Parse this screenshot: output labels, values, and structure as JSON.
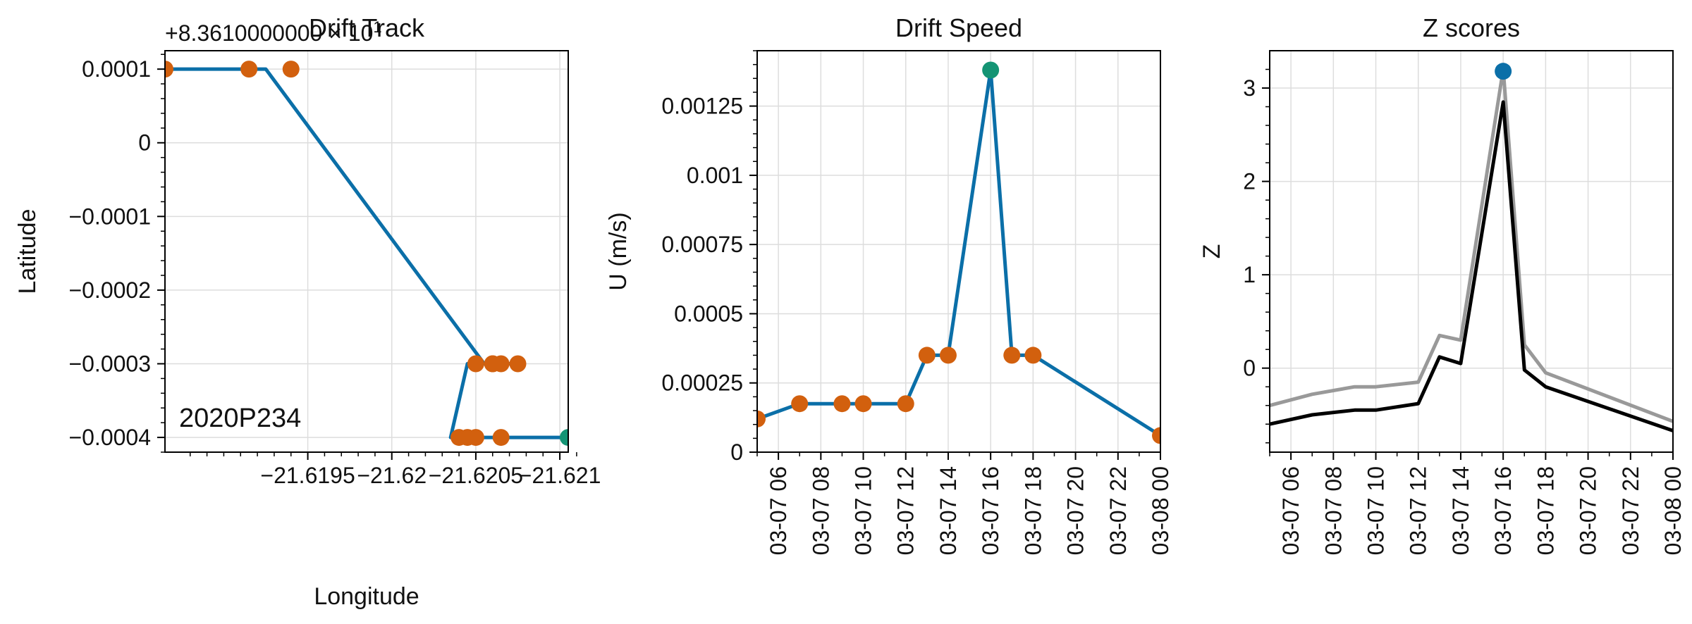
{
  "colors": {
    "line": "#0b6fa8",
    "marker_orange": "#d2600e",
    "marker_green": "#149474",
    "marker_blue": "#0b6fa8",
    "z_black": "#000000",
    "z_gray": "#999999",
    "grid": "#dddddd"
  },
  "chart_data": [
    {
      "type": "line",
      "title": "Drift Track",
      "xlabel": "Longitude",
      "ylabel": "Latitude",
      "offset_label": "+8.3610000000 × 10",
      "offset_exponent": "1",
      "annotation": "2020P234",
      "xlim": [
        -21.61865,
        -21.62105
      ],
      "ylim": [
        -0.00042,
        0.000125
      ],
      "x_ticks": [
        {
          "value": -21.6195,
          "label": "−21.6195"
        },
        {
          "value": -21.62,
          "label": "−21.62"
        },
        {
          "value": -21.6205,
          "label": "−21.6205"
        },
        {
          "value": -21.621,
          "label": "−21.621"
        }
      ],
      "y_ticks": [
        {
          "value": 0.0001,
          "label": "0.0001"
        },
        {
          "value": 0,
          "label": "0"
        },
        {
          "value": -0.0001,
          "label": "−0.0001"
        },
        {
          "value": -0.0002,
          "label": "−0.0002"
        },
        {
          "value": -0.0003,
          "label": "−0.0003"
        },
        {
          "value": -0.0004,
          "label": "−0.0004"
        }
      ],
      "grid": true,
      "track": {
        "x": [
          -21.62105,
          -21.6206,
          -21.6205,
          -21.62035,
          -21.62045,
          -21.62055,
          -21.62065,
          -21.62075,
          -21.62055,
          -21.61925,
          -21.6192,
          -21.61895,
          -21.61865
        ],
        "y": [
          -0.0004,
          -0.0004,
          -0.0004,
          -0.0004,
          -0.0003,
          -0.0003,
          -0.0003,
          -0.0003,
          -0.0003,
          0.0001,
          0.0001,
          0.0001,
          0.0001
        ]
      },
      "markers_orange": {
        "x": [
          -21.61865,
          -21.61915,
          -21.6194,
          -21.6204,
          -21.62045,
          -21.6205,
          -21.6206,
          -21.6206,
          -21.62065,
          -21.62075,
          -21.6205,
          -21.62065
        ],
        "y": [
          0.0001,
          0.0001,
          0.0001,
          -0.0004,
          -0.0004,
          -0.0004,
          -0.0003,
          -0.0003,
          -0.0003,
          -0.0003,
          -0.0003,
          -0.0004
        ]
      },
      "marker_green": {
        "x": -21.62105,
        "y": -0.0004
      }
    },
    {
      "type": "line",
      "title": "Drift Speed",
      "xlabel": "",
      "ylabel": "U (m/s)",
      "xlim": [
        5,
        24
      ],
      "ylim": [
        0,
        0.00145
      ],
      "x_ticks": [
        {
          "value": 6,
          "label": "03-07 06"
        },
        {
          "value": 8,
          "label": "03-07 08"
        },
        {
          "value": 10,
          "label": "03-07 10"
        },
        {
          "value": 12,
          "label": "03-07 12"
        },
        {
          "value": 14,
          "label": "03-07 14"
        },
        {
          "value": 16,
          "label": "03-07 16"
        },
        {
          "value": 18,
          "label": "03-07 18"
        },
        {
          "value": 20,
          "label": "03-07 20"
        },
        {
          "value": 22,
          "label": "03-07 22"
        },
        {
          "value": 24,
          "label": "03-08 00"
        }
      ],
      "y_ticks": [
        {
          "value": 0.00125,
          "label": "0.00125"
        },
        {
          "value": 0.001,
          "label": "0.001"
        },
        {
          "value": 0.00075,
          "label": "0.00075"
        },
        {
          "value": 0.0005,
          "label": "0.0005"
        },
        {
          "value": 0.00025,
          "label": "0.00025"
        },
        {
          "value": 0,
          "label": "0"
        }
      ],
      "grid": true,
      "series": [
        {
          "x": [
            5,
            7,
            9,
            10,
            12,
            13,
            14,
            16,
            17,
            18,
            24
          ],
          "y": [
            0.00012,
            0.000175,
            0.000175,
            0.000175,
            0.000175,
            0.00035,
            0.00035,
            0.00138,
            0.00035,
            0.00035,
            6e-05
          ]
        }
      ],
      "markers_orange": {
        "x": [
          5,
          7,
          9,
          10,
          12,
          13,
          14,
          17,
          18,
          24
        ],
        "y": [
          0.00012,
          0.000175,
          0.000175,
          0.000175,
          0.000175,
          0.00035,
          0.00035,
          0.00035,
          0.00035,
          6e-05
        ]
      },
      "marker_green": {
        "x": 16,
        "y": 0.00138
      }
    },
    {
      "type": "line",
      "title": "Z scores",
      "xlabel": "",
      "ylabel": "Z",
      "xlim": [
        5,
        24
      ],
      "ylim": [
        -0.9,
        3.4
      ],
      "x_ticks": [
        {
          "value": 6,
          "label": "03-07 06"
        },
        {
          "value": 8,
          "label": "03-07 08"
        },
        {
          "value": 10,
          "label": "03-07 10"
        },
        {
          "value": 12,
          "label": "03-07 12"
        },
        {
          "value": 14,
          "label": "03-07 14"
        },
        {
          "value": 16,
          "label": "03-07 16"
        },
        {
          "value": 18,
          "label": "03-07 18"
        },
        {
          "value": 20,
          "label": "03-07 20"
        },
        {
          "value": 22,
          "label": "03-07 22"
        },
        {
          "value": 24,
          "label": "03-08 00"
        }
      ],
      "y_ticks": [
        {
          "value": 3,
          "label": "3"
        },
        {
          "value": 2,
          "label": "2"
        },
        {
          "value": 1,
          "label": "1"
        },
        {
          "value": 0,
          "label": "0"
        }
      ],
      "grid": true,
      "series": [
        {
          "color": "#999999",
          "x": [
            5,
            7,
            9,
            10,
            12,
            13,
            14,
            16,
            17,
            18,
            24
          ],
          "y": [
            -0.4,
            -0.28,
            -0.2,
            -0.2,
            -0.15,
            0.35,
            0.3,
            3.2,
            0.25,
            -0.05,
            -0.57
          ]
        },
        {
          "color": "#000000",
          "x": [
            5,
            7,
            9,
            10,
            12,
            13,
            14,
            16,
            17,
            18,
            24
          ],
          "y": [
            -0.6,
            -0.5,
            -0.45,
            -0.45,
            -0.38,
            0.12,
            0.05,
            2.85,
            -0.02,
            -0.2,
            -0.67
          ]
        }
      ],
      "marker_blue": {
        "x": 16,
        "y": 3.18
      }
    }
  ]
}
